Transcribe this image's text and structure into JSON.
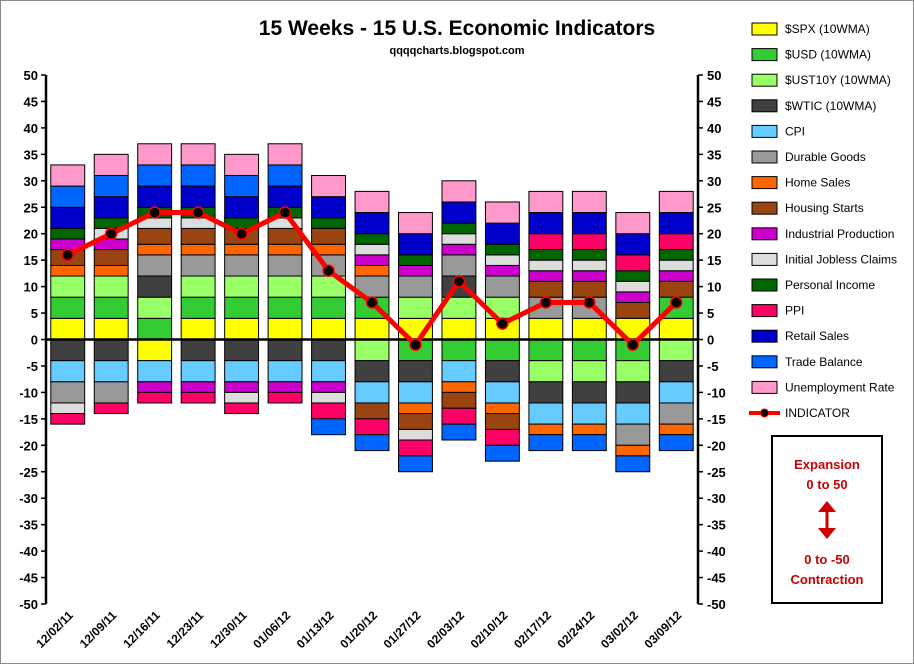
{
  "chart_data": {
    "type": "bar",
    "stacked": true,
    "title": "15 Weeks - 15 U.S. Economic Indicators",
    "subtitle": "qqqqcharts.blogspot.com",
    "ylim": [
      -50,
      50
    ],
    "ytick_step": 5,
    "categories": [
      "12/02/11",
      "12/09/11",
      "12/16/11",
      "12/23/11",
      "12/30/11",
      "01/06/12",
      "01/13/12",
      "01/20/12",
      "01/27/12",
      "02/03/12",
      "02/10/12",
      "02/17/12",
      "02/24/12",
      "03/02/12",
      "03/09/12"
    ],
    "series": [
      {
        "name": "$SPX (10WMA)",
        "color": "#ffff00",
        "values": [
          4,
          4,
          -4,
          4,
          4,
          4,
          4,
          4,
          4,
          4,
          4,
          4,
          4,
          4,
          4
        ]
      },
      {
        "name": "$USD (10WMA)",
        "color": "#33cc33",
        "values": [
          4,
          4,
          4,
          4,
          4,
          4,
          4,
          4,
          -4,
          -4,
          -4,
          -4,
          -4,
          -4,
          4
        ]
      },
      {
        "name": "$UST10Y (10WMA)",
        "color": "#99ff66",
        "values": [
          4,
          4,
          4,
          4,
          4,
          4,
          4,
          -4,
          4,
          4,
          4,
          -4,
          -4,
          -4,
          -4
        ]
      },
      {
        "name": "$WTIC (10WMA)",
        "color": "#404040",
        "values": [
          -4,
          -4,
          4,
          -4,
          -4,
          -4,
          -4,
          -4,
          -4,
          4,
          -4,
          -4,
          -4,
          -4,
          -4
        ]
      },
      {
        "name": "CPI",
        "color": "#66ccff",
        "values": [
          -4,
          -4,
          -4,
          -4,
          -4,
          -4,
          -4,
          -4,
          -4,
          -4,
          -4,
          -4,
          -4,
          -4,
          -4
        ]
      },
      {
        "name": "Durable Goods",
        "color": "#999999",
        "values": [
          -4,
          -4,
          4,
          4,
          4,
          4,
          4,
          4,
          4,
          4,
          4,
          4,
          4,
          -4,
          -4
        ]
      },
      {
        "name": "Home Sales",
        "color": "#ff6600",
        "values": [
          2,
          2,
          2,
          2,
          2,
          2,
          2,
          2,
          -2,
          -2,
          -2,
          -2,
          -2,
          -2,
          -2
        ]
      },
      {
        "name": "Housing Starts",
        "color": "#994411",
        "values": [
          3,
          3,
          3,
          3,
          3,
          3,
          3,
          -3,
          -3,
          -3,
          -3,
          3,
          3,
          3,
          3
        ]
      },
      {
        "name": "Industrial Production",
        "color": "#cc00cc",
        "values": [
          2,
          2,
          -2,
          -2,
          -2,
          -2,
          -2,
          2,
          2,
          2,
          2,
          2,
          2,
          2,
          2
        ]
      },
      {
        "name": "Initial Jobless Claims",
        "color": "#dddddd",
        "values": [
          -2,
          2,
          2,
          2,
          -2,
          2,
          -2,
          2,
          -2,
          2,
          2,
          2,
          2,
          2,
          2
        ]
      },
      {
        "name": "Personal Income",
        "color": "#006600",
        "values": [
          2,
          2,
          2,
          2,
          2,
          2,
          2,
          2,
          2,
          2,
          2,
          2,
          2,
          2,
          2
        ]
      },
      {
        "name": "PPI",
        "color": "#ff0066",
        "values": [
          -2,
          -2,
          -2,
          -2,
          -2,
          -2,
          -3,
          -3,
          -3,
          -3,
          -3,
          3,
          3,
          3,
          3
        ]
      },
      {
        "name": "Retail Sales",
        "color": "#0000cc",
        "values": [
          4,
          4,
          4,
          4,
          4,
          4,
          4,
          4,
          4,
          4,
          4,
          4,
          4,
          4,
          4
        ]
      },
      {
        "name": "Trade Balance",
        "color": "#0066ff",
        "values": [
          4,
          4,
          4,
          4,
          4,
          4,
          -3,
          -3,
          -3,
          -3,
          -3,
          -3,
          -3,
          -3,
          -3
        ]
      },
      {
        "name": "Unemployment Rate",
        "color": "#ff99cc",
        "values": [
          4,
          4,
          4,
          4,
          4,
          4,
          4,
          4,
          4,
          4,
          4,
          4,
          4,
          4,
          4
        ]
      }
    ],
    "indicator": {
      "name": "INDICATOR",
      "color": "#ff0000",
      "values": [
        16,
        20,
        24,
        24,
        20,
        24,
        13,
        7,
        -1,
        11,
        3,
        7,
        7,
        -1,
        7
      ]
    },
    "legend": "right",
    "annotation": {
      "top_lines": [
        "Expansion",
        "0 to 50"
      ],
      "bottom_lines": [
        "0 to -50",
        "Contraction"
      ]
    }
  }
}
